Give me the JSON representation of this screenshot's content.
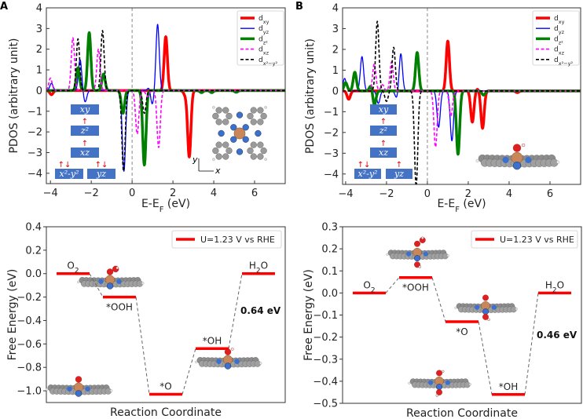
{
  "panel_labels": [
    "A",
    "B"
  ],
  "chart_data": [
    {
      "type": "line",
      "xlabel": {
        "main": "E-E",
        "sub": "F",
        "unit": " (eV)"
      },
      "ylabel": "PDOS (arbitrary unit)",
      "xlim": [
        -4.2,
        7.5
      ],
      "ylim": [
        -4.5,
        4
      ],
      "xticks": [
        -4,
        -2,
        0,
        2,
        4,
        6
      ],
      "yticks": [
        -4,
        -3,
        -2,
        -1,
        0,
        1,
        2,
        3,
        4
      ],
      "vline_at": 0,
      "legend": "top-right",
      "series": [
        {
          "name": "d",
          "sub": "xy",
          "color": "#ff0000",
          "style": "solid-thick",
          "peaks": [
            [
              1.65,
              2.6
            ],
            [
              2.8,
              -3.2
            ],
            [
              -3.95,
              -0.2
            ],
            [
              2.6,
              -0.2
            ]
          ]
        },
        {
          "name": "d",
          "sub": "yz",
          "color": "#0000ff",
          "style": "solid-thin",
          "peaks": [
            [
              1.25,
              3.2
            ],
            [
              -2.55,
              1.5
            ],
            [
              -2.3,
              -0.55
            ],
            [
              -0.4,
              -3.9
            ],
            [
              0.85,
              0.2
            ],
            [
              0.98,
              -0.7
            ],
            [
              -3.95,
              0.35
            ]
          ]
        },
        {
          "name": "d",
          "sub": "z²",
          "color": "#008000",
          "style": "solid-thick",
          "peaks": [
            [
              -2.1,
              2.8
            ],
            [
              -2.65,
              1.1
            ],
            [
              -1.4,
              0.8
            ],
            [
              -0.45,
              -1.1
            ],
            [
              0.6,
              -3.6
            ],
            [
              3.4,
              -0.1
            ],
            [
              3.9,
              -0.1
            ],
            [
              5.1,
              -0.08
            ]
          ]
        },
        {
          "name": "d",
          "sub": "xz",
          "color": "#ff00ff",
          "style": "dashed",
          "peaks": [
            [
              -2.9,
              2.55
            ],
            [
              -1.65,
              2.0
            ],
            [
              0.25,
              -2.1
            ],
            [
              1.3,
              -2.75
            ],
            [
              0.75,
              -0.3
            ],
            [
              -4.0,
              0.6
            ]
          ]
        },
        {
          "name": "d",
          "sub": "x²−y²",
          "color": "#000000",
          "style": "dashed",
          "peaks": [
            [
              -2.65,
              2.5
            ],
            [
              -1.45,
              2.9
            ],
            [
              -0.42,
              -3.9
            ],
            [
              0.6,
              -1.1
            ]
          ]
        }
      ],
      "orbital_levels": [
        {
          "label": "xy",
          "arrows": ""
        },
        {
          "label": "z²",
          "arrows": "↑"
        },
        {
          "label": "xz",
          "arrows": "↑"
        },
        {
          "label": "x²-y²",
          "arrows": "↑↓"
        },
        {
          "label": "yz",
          "arrows": "↑↓"
        }
      ],
      "axes_inset": {
        "y": "y",
        "x": "x"
      }
    },
    {
      "type": "line",
      "xlabel": {
        "main": "E-E",
        "sub": "F",
        "unit": " (eV)"
      },
      "ylabel": "PDOS (arbitrary unit)",
      "xlim": [
        -4.15,
        7.5
      ],
      "ylim": [
        -4.5,
        4
      ],
      "xticks": [
        -4,
        -2,
        0,
        2,
        4,
        6
      ],
      "yticks": [
        -4,
        -3,
        -2,
        -1,
        0,
        1,
        2,
        3,
        4
      ],
      "vline_at": 0,
      "legend": "top-right",
      "series": [
        {
          "name": "d",
          "sub": "xy",
          "color": "#ff0000",
          "style": "solid-thick",
          "peaks": [
            [
              1.0,
              2.4
            ],
            [
              2.2,
              -1.5
            ],
            [
              2.7,
              -1.8
            ],
            [
              -3.85,
              -0.4
            ],
            [
              2.45,
              0.1
            ],
            [
              4.4,
              -0.08
            ]
          ]
        },
        {
          "name": "d",
          "sub": "yz",
          "color": "#0000ff",
          "style": "solid-thin",
          "peaks": [
            [
              -3.2,
              1.65
            ],
            [
              -1.3,
              1.8
            ],
            [
              -4.05,
              0.6
            ],
            [
              -2.4,
              -0.6
            ],
            [
              -1.5,
              -0.35
            ],
            [
              0.55,
              -1.75
            ],
            [
              1.2,
              -2.4
            ]
          ]
        },
        {
          "name": "d",
          "sub": "z²",
          "color": "#008000",
          "style": "solid-thick",
          "peaks": [
            [
              -0.5,
              1.85
            ],
            [
              -3.55,
              0.9
            ],
            [
              -2.6,
              -0.7
            ],
            [
              -2.75,
              0.3
            ],
            [
              1.5,
              -3.05
            ],
            [
              -4.0,
              0.4
            ],
            [
              2.75,
              -0.2
            ]
          ]
        },
        {
          "name": "d",
          "sub": "xz",
          "color": "#ff00ff",
          "style": "dashed",
          "peaks": [
            [
              -2.6,
              1.3
            ],
            [
              -1.75,
              1.4
            ],
            [
              0.4,
              -2.7
            ],
            [
              1.15,
              -1.2
            ],
            [
              -2.2,
              0.3
            ]
          ]
        },
        {
          "name": "d",
          "sub": "x²−y²",
          "color": "#000000",
          "style": "dashed",
          "peaks": [
            [
              -2.45,
              3.35
            ],
            [
              -1.65,
              2.1
            ],
            [
              -0.55,
              -4.6
            ],
            [
              -2.0,
              -0.5
            ]
          ]
        }
      ],
      "orbital_levels": [
        {
          "label": "xy",
          "arrows": ""
        },
        {
          "label": "z²",
          "arrows": "↑"
        },
        {
          "label": "xz",
          "arrows": "↑"
        },
        {
          "label": "x²-y²",
          "arrows": "↑↓"
        },
        {
          "label": "yz",
          "arrows": "↑"
        }
      ]
    },
    {
      "type": "line",
      "subtype": "free-energy-diagram",
      "xlabel": "Reaction Coordinate",
      "ylabel": "Free Energy (eV)",
      "ylim": [
        -1.1,
        0.4
      ],
      "yticks": [
        0.4,
        0.2,
        0.0,
        -0.2,
        -0.4,
        -0.6,
        -0.8,
        -1.0
      ],
      "legend": {
        "label": "U=1.23 V vs RHE",
        "color": "#ff0000",
        "placement": "top-right"
      },
      "steps": [
        {
          "species": "O",
          "sub": "2",
          "value": 0.0
        },
        {
          "species": "*OOH",
          "sub": "",
          "value": -0.2
        },
        {
          "species": "*O",
          "sub": "",
          "value": -1.03
        },
        {
          "species": "*OH",
          "sub": "",
          "value": -0.64
        },
        {
          "species": "H",
          "sub": "2",
          "post": "O",
          "value": 0.0
        }
      ],
      "annotation": "0.64 eV"
    },
    {
      "type": "line",
      "subtype": "free-energy-diagram",
      "xlabel": "Reaction Coordinate",
      "ylabel": "Free Energy (eV)",
      "ylim": [
        -0.5,
        0.3
      ],
      "yticks": [
        0.3,
        0.2,
        0.1,
        0.0,
        -0.1,
        -0.2,
        -0.3,
        -0.4,
        -0.5
      ],
      "legend": {
        "label": "U=1.23 V vs RHE",
        "color": "#ff0000",
        "placement": "top-right"
      },
      "steps": [
        {
          "species": "O",
          "sub": "2",
          "value": 0.0
        },
        {
          "species": "*OOH",
          "sub": "",
          "value": 0.07
        },
        {
          "species": "*O",
          "sub": "",
          "value": -0.13
        },
        {
          "species": "*OH",
          "sub": "",
          "value": -0.46
        },
        {
          "species": "H",
          "sub": "2",
          "post": "O",
          "value": 0.0
        }
      ],
      "annotation": "0.46 eV"
    }
  ]
}
